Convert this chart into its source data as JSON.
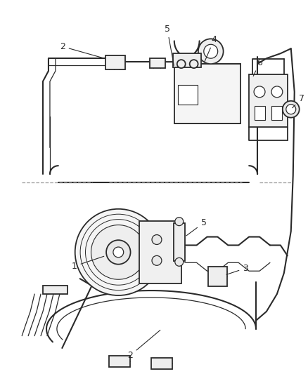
{
  "bg_color": "#ffffff",
  "line_color": "#2a2a2a",
  "figsize": [
    4.38,
    5.33
  ],
  "dpi": 100,
  "label_fs": 9,
  "lw_hose": 1.5,
  "lw_thin": 0.9,
  "lw_part": 1.3
}
